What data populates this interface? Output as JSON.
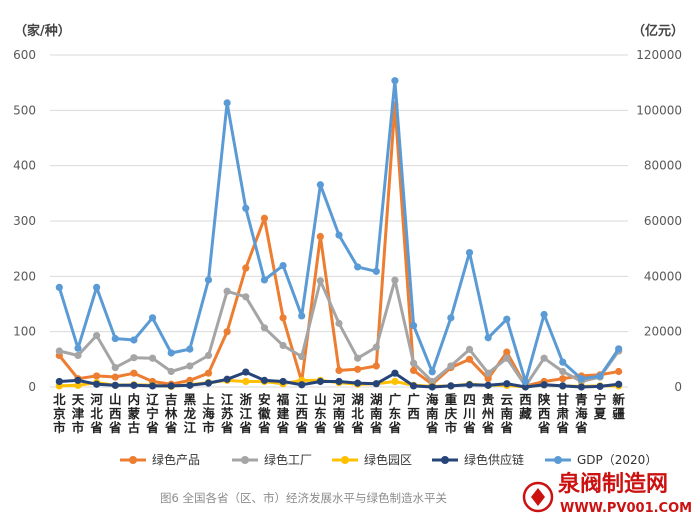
{
  "chart_data": {
    "type": "line",
    "left_axis_unit": "（家/种）",
    "right_axis_unit": "（亿元）",
    "caption": "图6 全国各省（区、市）经济发展水平与绿色制造水平关",
    "ylim_left": [
      0,
      600
    ],
    "yticks_left": [
      "0",
      "100",
      "200",
      "300",
      "400",
      "500",
      "600"
    ],
    "ylim_right": [
      0,
      120000
    ],
    "yticks_right": [
      "0",
      "20000",
      "40000",
      "60000",
      "80000",
      "100000",
      "120000"
    ],
    "grid": true,
    "legend_position": "bottom",
    "categories": [
      "北京市",
      "天津市",
      "河北省",
      "山西省",
      "内蒙古",
      "辽宁省",
      "吉林省",
      "黑龙江",
      "上海市",
      "江苏省",
      "浙江省",
      "安徽省",
      "福建省",
      "江西省",
      "山东省",
      "河南省",
      "湖北省",
      "湖南省",
      "广东省",
      "广西",
      "海南省",
      "重庆市",
      "四川省",
      "贵州省",
      "云南省",
      "西藏",
      "陕西省",
      "甘肃省",
      "青海省",
      "宁夏",
      "新疆"
    ],
    "series": [
      {
        "name": "绿色产品",
        "axis": "left",
        "color": "#ED7D31",
        "values": [
          57,
          15,
          20,
          18,
          25,
          10,
          5,
          12,
          25,
          100,
          215,
          305,
          125,
          10,
          272,
          30,
          32,
          38,
          510,
          30,
          5,
          35,
          50,
          15,
          63,
          2,
          10,
          15,
          20,
          22,
          28
        ]
      },
      {
        "name": "绿色工厂",
        "axis": "left",
        "color": "#A5A5A5",
        "values": [
          65,
          57,
          93,
          35,
          53,
          52,
          28,
          38,
          57,
          173,
          163,
          107,
          75,
          55,
          192,
          115,
          52,
          72,
          193,
          43,
          10,
          38,
          68,
          25,
          52,
          2,
          52,
          28,
          10,
          18,
          65
        ]
      },
      {
        "name": "绿色园区",
        "axis": "left",
        "color": "#FFC000",
        "values": [
          2,
          3,
          8,
          3,
          4,
          3,
          1,
          4,
          8,
          12,
          10,
          10,
          6,
          12,
          12,
          8,
          5,
          6,
          10,
          3,
          1,
          2,
          5,
          3,
          3,
          0,
          4,
          2,
          1,
          2,
          2
        ]
      },
      {
        "name": "绿色供应链",
        "axis": "left",
        "color": "#264478",
        "values": [
          10,
          12,
          5,
          3,
          3,
          2,
          2,
          3,
          7,
          14,
          27,
          12,
          10,
          4,
          10,
          10,
          7,
          6,
          25,
          2,
          0,
          2,
          4,
          3,
          6,
          0,
          4,
          2,
          0,
          1,
          5
        ]
      },
      {
        "name": "GDP（2020）",
        "axis": "right",
        "color": "#5B9BD5",
        "values": [
          36000,
          14000,
          36000,
          17500,
          17000,
          25000,
          12300,
          13700,
          38700,
          102700,
          64600,
          38700,
          43900,
          25700,
          73100,
          54900,
          43400,
          41800,
          110700,
          22200,
          5500,
          25000,
          48600,
          17800,
          24500,
          1900,
          26200,
          9000,
          3000,
          3900,
          13800
        ]
      }
    ]
  },
  "watermark": {
    "text": "泉阀制造网",
    "url": "WWW.PV001.COM"
  }
}
